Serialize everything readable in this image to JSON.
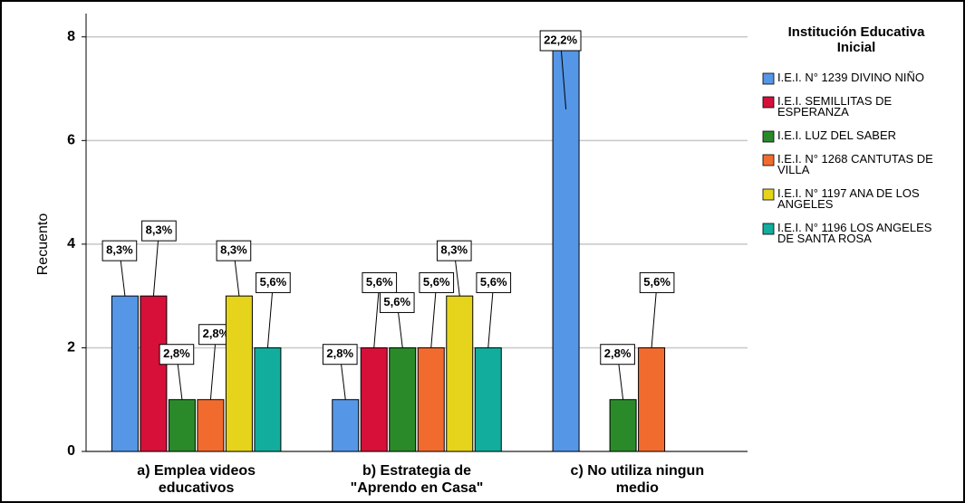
{
  "chart_data": {
    "type": "bar",
    "y_label": "Recuento",
    "legend_title": "Institución Educativa Inicial",
    "categories": [
      "a) Emplea videos educativos",
      "b) Estrategia de \"Aprendo en Casa\"",
      "c) No utiliza ningun medio"
    ],
    "series": [
      {
        "name": "I.E.I. N° 1239 DIVINO NIÑO",
        "color": "#5596e6",
        "values": [
          3,
          1,
          8
        ],
        "percent_labels": [
          "8,3%",
          "2,8%",
          "22,2%"
        ]
      },
      {
        "name": "I.E.I. SEMILLITAS DE ESPERANZA",
        "color": "#d7103a",
        "values": [
          3,
          2,
          null
        ],
        "percent_labels": [
          "8,3%",
          "5,6%",
          null
        ]
      },
      {
        "name": "I.E.I. LUZ DEL SABER",
        "color": "#2a8a2a",
        "values": [
          1,
          2,
          1
        ],
        "percent_labels": [
          "2,8%",
          "5,6%",
          "2,8%"
        ]
      },
      {
        "name": "I.E.I. N° 1268 CANTUTAS DE VILLA",
        "color": "#f26b2e",
        "values": [
          1,
          2,
          2
        ],
        "percent_labels": [
          "2,8%",
          "5,6%",
          "5,6%"
        ]
      },
      {
        "name": "I.E.I. N° 1197 ANA DE LOS ANGELES",
        "color": "#e6d41c",
        "values": [
          3,
          3,
          null
        ],
        "percent_labels": [
          "8,3%",
          "8,3%",
          null
        ]
      },
      {
        "name": "I.E.I. N° 1196 LOS ANGELES DE SANTA ROSA",
        "color": "#12ad9c",
        "values": [
          2,
          2,
          null
        ],
        "percent_labels": [
          "5,6%",
          "5,6%",
          null
        ]
      }
    ],
    "ylim": [
      0,
      8.45
    ],
    "yticks": [
      0,
      2,
      4,
      6,
      8
    ],
    "grid": true,
    "legend": "right"
  }
}
